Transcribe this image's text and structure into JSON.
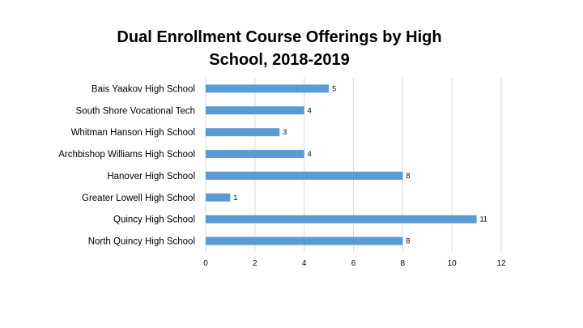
{
  "chart_data": {
    "type": "bar",
    "orientation": "horizontal",
    "title_lines": [
      "Dual Enrollment Course Offerings by High",
      "School, 2018-2019"
    ],
    "categories": [
      "Bais Yaakov High School",
      "South Shore Vocational Tech",
      "Whitman Hanson High School",
      "Archbishop Williams High School",
      "Hanover High School",
      "Greater Lowell High School",
      "Quincy High School",
      "North Quincy High School"
    ],
    "values": [
      5,
      4,
      3,
      4,
      8,
      1,
      11,
      8
    ],
    "xlim": [
      0,
      12
    ],
    "xticks": [
      "0",
      "2",
      "4",
      "6",
      "8",
      "10",
      "12"
    ],
    "grid": "vertical",
    "legend": "none",
    "bar_color": "#5b9bd5",
    "grid_color": "#d9d9d9"
  }
}
